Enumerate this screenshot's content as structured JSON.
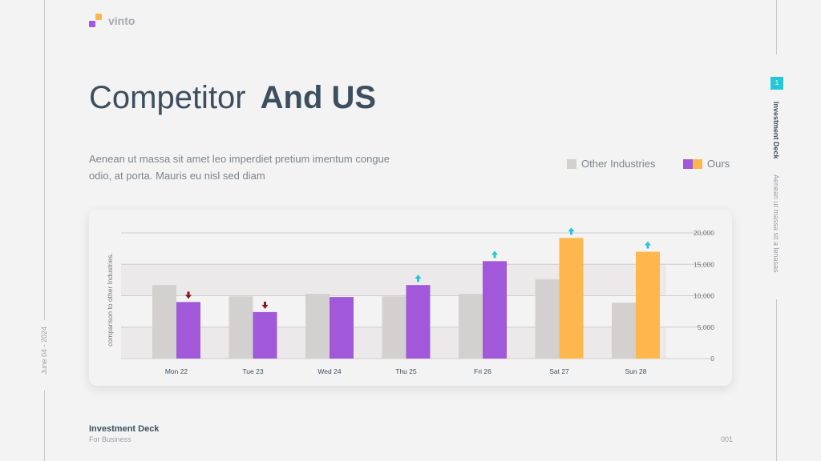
{
  "brand": {
    "name": "vinto"
  },
  "title": {
    "light": "Competitor",
    "bold": "And US"
  },
  "description": "Aenean ut massa sit amet leo imperdiet pretium imentum congue odio, at porta. Mauris eu nisl sed diam",
  "legend": [
    {
      "label": "Other Industries",
      "colors": [
        "#d3d0d0"
      ]
    },
    {
      "label": "Ours",
      "colors": [
        "#a259d9",
        "#ffb74d"
      ]
    }
  ],
  "side": {
    "page_badge": "1",
    "deck_label": "Investment Deck",
    "deck_sub": "Aenean ut massa sit a lenasas"
  },
  "left_date": "June 04 - 2024",
  "footer": {
    "title": "Investment Deck",
    "subtitle": "For Business",
    "page": "001"
  },
  "colors": {
    "other": "#d3d0d0",
    "ours_purple": "#a259d9",
    "ours_orange": "#ffb74d",
    "up_arrow": "#26c6da",
    "down_arrow": "#8b1a1a"
  },
  "chart_data": {
    "type": "bar",
    "categories": [
      "Mon 22",
      "Tue 23",
      "Wed 24",
      "Thu 25",
      "Fri 26",
      "Sat 27",
      "Sun 28"
    ],
    "series": [
      {
        "name": "Other Industries",
        "values": [
          11700,
          9900,
          10300,
          9900,
          10300,
          12600,
          8900
        ]
      },
      {
        "name": "Ours",
        "values": [
          9000,
          7400,
          9800,
          11700,
          15500,
          19200,
          17000
        ]
      }
    ],
    "ours_colors": [
      "purple",
      "purple",
      "purple",
      "purple",
      "purple",
      "orange",
      "orange"
    ],
    "trend": [
      "down",
      "down",
      "",
      "up",
      "up",
      "up",
      "up"
    ],
    "ylabel": "comparison to other Industries.",
    "ylim": [
      0,
      20000
    ],
    "yticks": [
      0,
      5000,
      10000,
      15000,
      20000
    ],
    "ytick_labels": [
      "0",
      "5,000",
      "10,000",
      "15,000",
      "20,000"
    ],
    "grid": true,
    "legend_position": "top-right"
  }
}
